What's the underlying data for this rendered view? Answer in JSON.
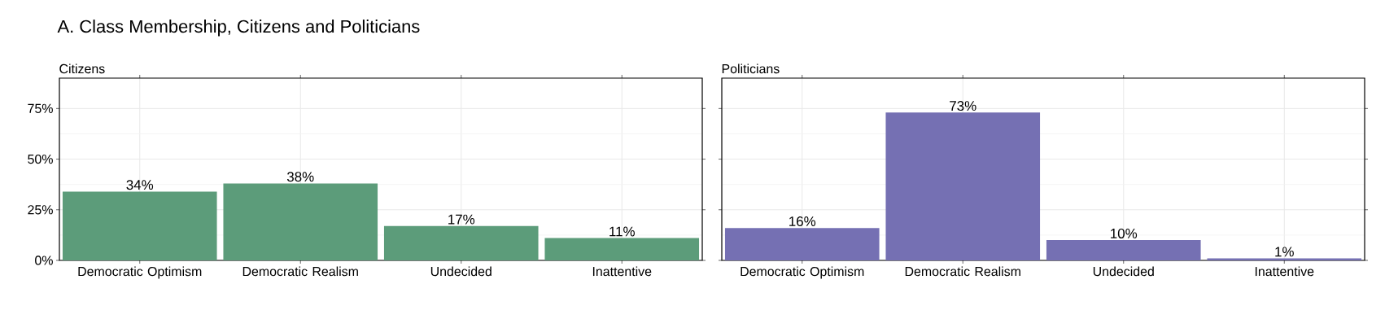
{
  "chart_data": [
    {
      "type": "bar",
      "title": "A. Class Membership, Citizens and Politicians",
      "subtitle": "Citizens",
      "categories": [
        "Democratic Optimism",
        "Democratic Realism",
        "Undecided",
        "Inattentive"
      ],
      "values": [
        34,
        38,
        17,
        11
      ],
      "value_labels": [
        "34%",
        "38%",
        "17%",
        "11%"
      ],
      "color": "#5c9c7a",
      "ylim": [
        0,
        90
      ],
      "yticks": [
        {
          "value": 0,
          "label": "0%"
        },
        {
          "value": 25,
          "label": "25%"
        },
        {
          "value": 50,
          "label": "50%"
        },
        {
          "value": 75,
          "label": "75%"
        }
      ],
      "grid": true
    },
    {
      "type": "bar",
      "subtitle": "Politicians",
      "categories": [
        "Democratic Optimism",
        "Democratic Realism",
        "Undecided",
        "Inattentive"
      ],
      "values": [
        16,
        73,
        10,
        1
      ],
      "value_labels": [
        "16%",
        "73%",
        "10%",
        "1%"
      ],
      "color": "#7570b3",
      "ylim": [
        0,
        90
      ],
      "yticks": [
        {
          "value": 0,
          "label": null
        },
        {
          "value": 25,
          "label": null
        },
        {
          "value": 50,
          "label": null
        },
        {
          "value": 75,
          "label": null
        }
      ],
      "grid": true,
      "tick_labels": "x"
    }
  ]
}
